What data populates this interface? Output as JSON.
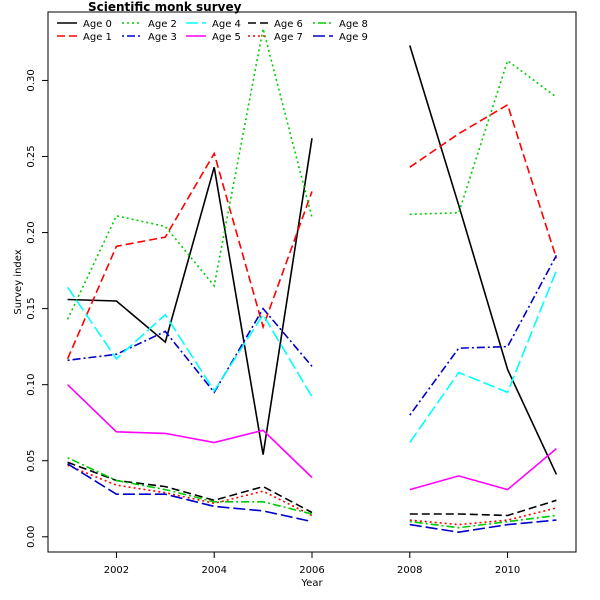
{
  "chart_data": {
    "type": "line",
    "title": "Scientific monk survey",
    "xlabel": "Year",
    "ylabel": "Survey index",
    "xlim": [
      2000.6,
      2011.4
    ],
    "ylim": [
      -0.01,
      0.345
    ],
    "xticks": [
      2002,
      2004,
      2006,
      2008,
      2010
    ],
    "yticks": [
      0.0,
      0.05,
      0.1,
      0.15,
      0.2,
      0.25,
      0.3
    ],
    "ytick_labels": [
      "0.00",
      "0.05",
      "0.10",
      "0.15",
      "0.20",
      "0.25",
      "0.30"
    ],
    "legend_position": "top-left",
    "x": [
      2001,
      2002,
      2003,
      2004,
      2005,
      2006,
      2007,
      2008,
      2009,
      2010,
      2011
    ],
    "series": [
      {
        "name": "Age 0",
        "color": "#000000",
        "dash": "solid",
        "values": [
          0.156,
          0.155,
          0.128,
          0.243,
          0.054,
          0.262,
          null,
          0.323,
          0.218,
          0.11,
          0.041
        ]
      },
      {
        "name": "Age 1",
        "color": "#ff0000",
        "dash": "dashed",
        "values": [
          0.117,
          0.191,
          0.197,
          0.252,
          0.138,
          0.227,
          null,
          0.243,
          0.265,
          0.284,
          0.183
        ]
      },
      {
        "name": "Age 2",
        "color": "#00cd00",
        "dash": "dotted",
        "values": [
          0.143,
          0.211,
          0.204,
          0.165,
          0.334,
          0.21,
          null,
          0.212,
          0.213,
          0.313,
          0.289
        ]
      },
      {
        "name": "Age 3",
        "color": "#0000cd",
        "dash": "dotdash",
        "values": [
          0.116,
          0.12,
          0.135,
          0.095,
          0.15,
          0.112,
          null,
          0.08,
          0.124,
          0.125,
          0.185
        ]
      },
      {
        "name": "Age 4",
        "color": "#00ffff",
        "dash": "longdash",
        "values": [
          0.164,
          0.117,
          0.146,
          0.096,
          0.146,
          0.092,
          null,
          0.062,
          0.108,
          0.095,
          0.175
        ]
      },
      {
        "name": "Age 5",
        "color": "#ff00ff",
        "dash": "solid",
        "values": [
          0.1,
          0.069,
          0.068,
          0.062,
          0.07,
          0.039,
          null,
          0.031,
          0.04,
          0.031,
          0.058
        ]
      },
      {
        "name": "Age 6",
        "color": "#000000",
        "dash": "dashed",
        "values": [
          0.049,
          0.037,
          0.033,
          0.024,
          0.033,
          0.016,
          null,
          0.015,
          0.015,
          0.014,
          0.024
        ]
      },
      {
        "name": "Age 7",
        "color": "#ff0000",
        "dash": "dotted",
        "values": [
          0.047,
          0.034,
          0.029,
          0.022,
          0.03,
          0.014,
          null,
          0.011,
          0.008,
          0.011,
          0.019
        ]
      },
      {
        "name": "Age 8",
        "color": "#00cd00",
        "dash": "dotdash",
        "values": [
          0.052,
          0.037,
          0.031,
          0.023,
          0.023,
          0.015,
          null,
          0.01,
          0.006,
          0.01,
          0.014
        ]
      },
      {
        "name": "Age 9",
        "color": "#0000cd",
        "dash": "longdash",
        "values": [
          0.048,
          0.028,
          0.028,
          0.02,
          0.017,
          0.01,
          null,
          0.008,
          0.003,
          0.008,
          0.011
        ]
      }
    ]
  }
}
